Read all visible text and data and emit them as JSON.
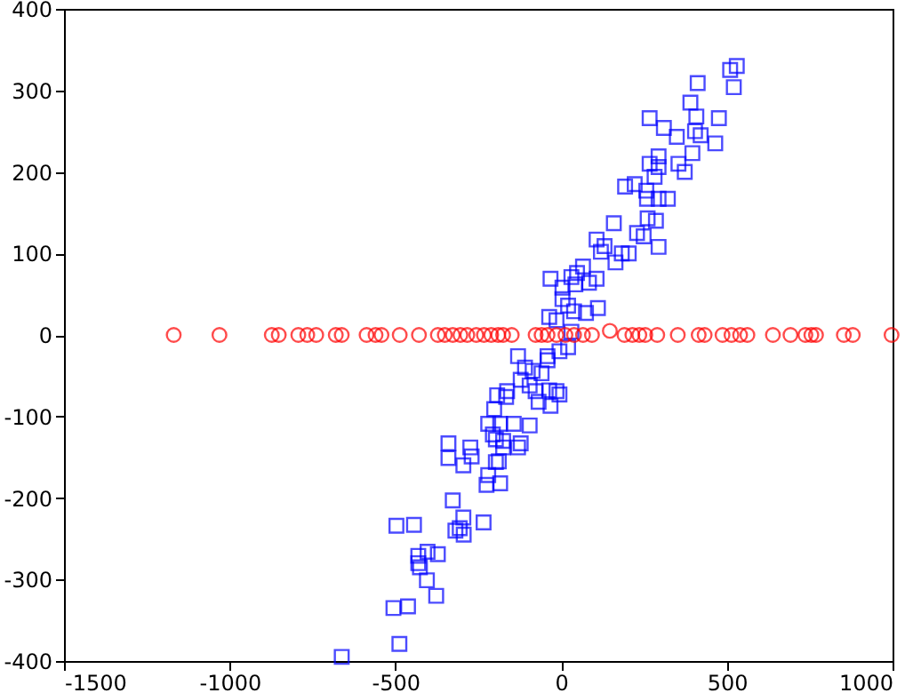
{
  "chart_data": {
    "type": "scatter",
    "xlim": [
      -1500,
      1000
    ],
    "xticks": [
      -1500,
      -1000,
      -500,
      0,
      500,
      1000
    ],
    "ylim": [
      -400,
      400
    ],
    "yticks": [
      -400,
      -300,
      -200,
      -100,
      0,
      100,
      200,
      300,
      400
    ],
    "grid": false,
    "series": [
      {
        "color": "#0000ff",
        "marker": "square",
        "x": [
          530,
          510,
          521,
          412,
          390,
          408,
          267,
          476,
          310,
          404,
          421,
          349,
          465,
          396,
          294,
          267,
          354,
          294,
          373,
          282,
          193,
          222,
          257,
          259,
          294,
          322,
          159,
          261,
          286,
          229,
          249,
          294,
          107,
          131,
          120,
          183,
          204,
          164,
          -32,
          31,
          107,
          66,
          48,
          4,
          43,
          84,
          4,
          21,
          111,
          75,
          39,
          -36,
          -14,
          31,
          21,
          -5,
          -41,
          -130,
          -41,
          -109,
          -86,
          -59,
          -122,
          -95,
          -77,
          -14,
          -36,
          -5,
          -68,
          -32,
          -193,
          -163,
          -166,
          -202,
          -220,
          -184,
          -143,
          -95,
          -206,
          -197,
          -175,
          -122,
          -340,
          -274,
          -340,
          -270,
          -295,
          -130,
          -175,
          -188,
          -197,
          -220,
          -225,
          -184,
          -327,
          -295,
          -234,
          -444,
          -497,
          -319,
          -294,
          -306,
          -403,
          -372,
          -431,
          -431,
          -426,
          -405,
          -377,
          -462,
          -506,
          -488,
          -662
        ],
        "values": [
          330,
          325,
          304,
          309,
          285,
          268,
          266,
          266,
          254,
          250,
          245,
          243,
          235,
          223,
          219,
          210,
          210,
          206,
          200,
          194,
          182,
          185,
          177,
          167,
          167,
          167,
          137,
          143,
          140,
          125,
          121,
          108,
          117,
          109,
          102,
          100,
          100,
          89,
          69,
          71,
          69,
          84,
          76,
          58,
          62,
          64,
          44,
          36,
          33,
          27,
          29,
          22,
          18,
          4,
          -15,
          -20,
          -26,
          -26,
          -31,
          -40,
          -44,
          -47,
          -55,
          -62,
          -69,
          -69,
          -68,
          -73,
          -82,
          -87,
          -74,
          -69,
          -76,
          -91,
          -109,
          -109,
          -109,
          -111,
          -122,
          -128,
          -130,
          -133,
          -133,
          -138,
          -151,
          -149,
          -160,
          -138,
          -138,
          -155,
          -156,
          -172,
          -184,
          -182,
          -203,
          -224,
          -230,
          -233,
          -234,
          -240,
          -245,
          -237,
          -266,
          -269,
          -271,
          -280,
          -285,
          -301,
          -320,
          -333,
          -335,
          -379,
          -395
        ]
      },
      {
        "color": "#ff0000",
        "marker": "circle",
        "x": [
          -1169,
          -1031,
          -873,
          -852,
          -793,
          -766,
          -739,
          -680,
          -662,
          -587,
          -560,
          -542,
          -487,
          -429,
          -372,
          -351,
          -327,
          -304,
          -283,
          -256,
          -233,
          -211,
          -190,
          -175,
          -149,
          -77,
          -59,
          -41,
          -14,
          13,
          39,
          66,
          93,
          147,
          191,
          215,
          236,
          254,
          290,
          352,
          415,
          433,
          487,
          514,
          540,
          562,
          639,
          692,
          737,
          755,
          769,
          853,
          880,
          997
        ],
        "values": [
          0,
          0,
          0,
          0,
          0,
          0,
          0,
          0,
          0,
          0,
          0,
          0,
          0,
          0,
          0,
          0,
          0,
          0,
          0,
          0,
          0,
          0,
          0,
          0,
          0,
          0,
          0,
          0,
          0,
          0,
          0,
          0,
          0,
          5,
          0,
          0,
          0,
          0,
          0,
          0,
          0,
          0,
          0,
          0,
          0,
          0,
          0,
          0,
          0,
          0,
          0,
          0,
          0,
          0
        ]
      }
    ]
  }
}
